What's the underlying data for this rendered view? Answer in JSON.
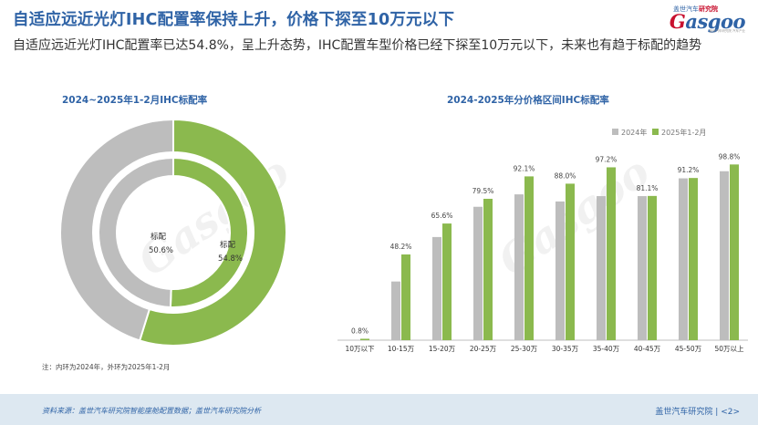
{
  "header": {
    "title": "自适应远近光灯IHC配置率保持上升，价格下探至10万元以下",
    "subtitle": "自适应远近光灯IHC配置率已达54.8%，呈上升态势，IHC配置车型价格已经下探至10万元以下，未来也有趋于标配的趋势"
  },
  "logo": {
    "cn_a": "盖世汽车",
    "cn_b": "研究院",
    "en_a": "G",
    "en_b": "asgoo",
    "tagline": "盖世汽车研究院 汽车产业"
  },
  "watermark": "Gasgoo",
  "colors": {
    "gray": "#bdbdbd",
    "green": "#8bb94e",
    "title": "#2f63a6"
  },
  "chart_data": [
    {
      "type": "pie",
      "title": "2024~2025年1-2月IHC标配率",
      "rings": [
        {
          "name": "2024年",
          "position": "inner",
          "label": "标配",
          "value": 50.6,
          "value_label": "50.6%"
        },
        {
          "name": "2025年1-2月",
          "position": "outer",
          "label": "标配",
          "value": 54.8,
          "value_label": "54.8%"
        }
      ]
    },
    {
      "type": "bar",
      "title": "2024-2025年分价格区间IHC标配率",
      "categories": [
        "10万以下",
        "10-15万",
        "15-20万",
        "20-25万",
        "25-30万",
        "30-35万",
        "35-40万",
        "40-45万",
        "45-50万",
        "50万以上"
      ],
      "series": [
        {
          "name": "2024年",
          "values": [
            0.0,
            33,
            58,
            75,
            82,
            78,
            81,
            81,
            91,
            95
          ]
        },
        {
          "name": "2025年1-2月",
          "values": [
            0.8,
            48.2,
            65.6,
            79.5,
            92.1,
            88.0,
            97.2,
            81.1,
            91.2,
            98.8
          ],
          "labels": [
            "0.8%",
            "48.2%",
            "65.6%",
            "79.5%",
            "92.1%",
            "88.0%",
            "97.2%",
            "81.1%",
            "91.2%",
            "98.8%"
          ]
        }
      ],
      "ylim": [
        0,
        100
      ],
      "legend": "top"
    }
  ],
  "note": "注：内环为2024年，外环为2025年1-2月",
  "footer": {
    "source": "资料来源：盖世汽车研究院智能座舱配置数据；盖世汽车研究院分析",
    "org": "盖世汽车研究院",
    "page": "<2>"
  }
}
